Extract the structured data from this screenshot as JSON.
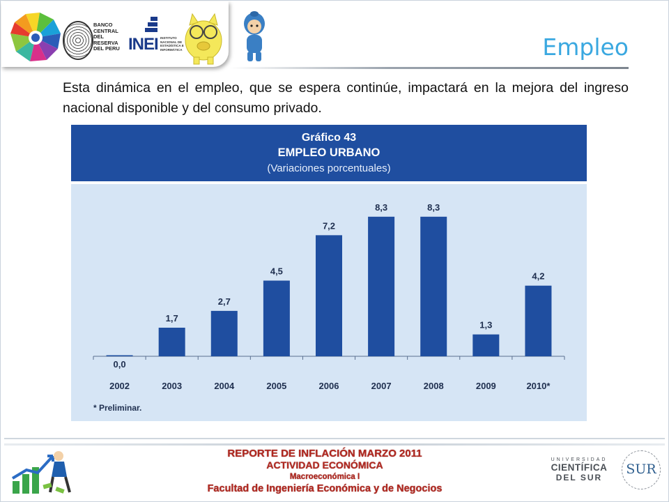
{
  "slide": {
    "title": "Empleo",
    "intro": "Esta dinámica en el empleo, que se espera continúe, impactará en la mejora del ingreso nacional disponible  y del consumo privado."
  },
  "logos": {
    "bcr_text": "BANCO\nCENTRAL\nDEL RESERVA\nDEL PERU",
    "inei_word": "INEI",
    "inei_text": "INSTITUTO\nNACIONAL DE\nESTADÍSTICA E\nINFORMÁTICA"
  },
  "chart_data": {
    "type": "bar",
    "number": "Gráfico 43",
    "title": "EMPLEO URBANO",
    "subtitle": "(Variaciones porcentuales)",
    "categories": [
      "2002",
      "2003",
      "2004",
      "2005",
      "2006",
      "2007",
      "2008",
      "2009",
      "2010*"
    ],
    "values": [
      0.0,
      1.7,
      2.7,
      4.5,
      7.2,
      8.3,
      8.3,
      1.3,
      4.2
    ],
    "value_labels": [
      "0,0",
      "1,7",
      "2,7",
      "4,5",
      "7,2",
      "8,3",
      "8,3",
      "1,3",
      "4,2"
    ],
    "note": "* Preliminar.",
    "bar_color": "#1f4ea0",
    "background_color": "#d6e5f5",
    "grid": false
  },
  "footer": {
    "line1": "REPORTE DE INFLACIÓN MARZO 2011",
    "line2": "ACTIVIDAD ECONÓMICA",
    "line3": "Macroeconómica I",
    "line4": "Facultad de Ingeniería Económica y de Negocios",
    "university": {
      "line1": "UNIVERSIDAD",
      "line2": "CIENTÍFICA",
      "line3": "DEL SUR",
      "seal": "SUR"
    }
  },
  "colors": {
    "title": "#3aa8e0",
    "footer_text": "#b02820",
    "chart_header": "#1f4ea0"
  }
}
